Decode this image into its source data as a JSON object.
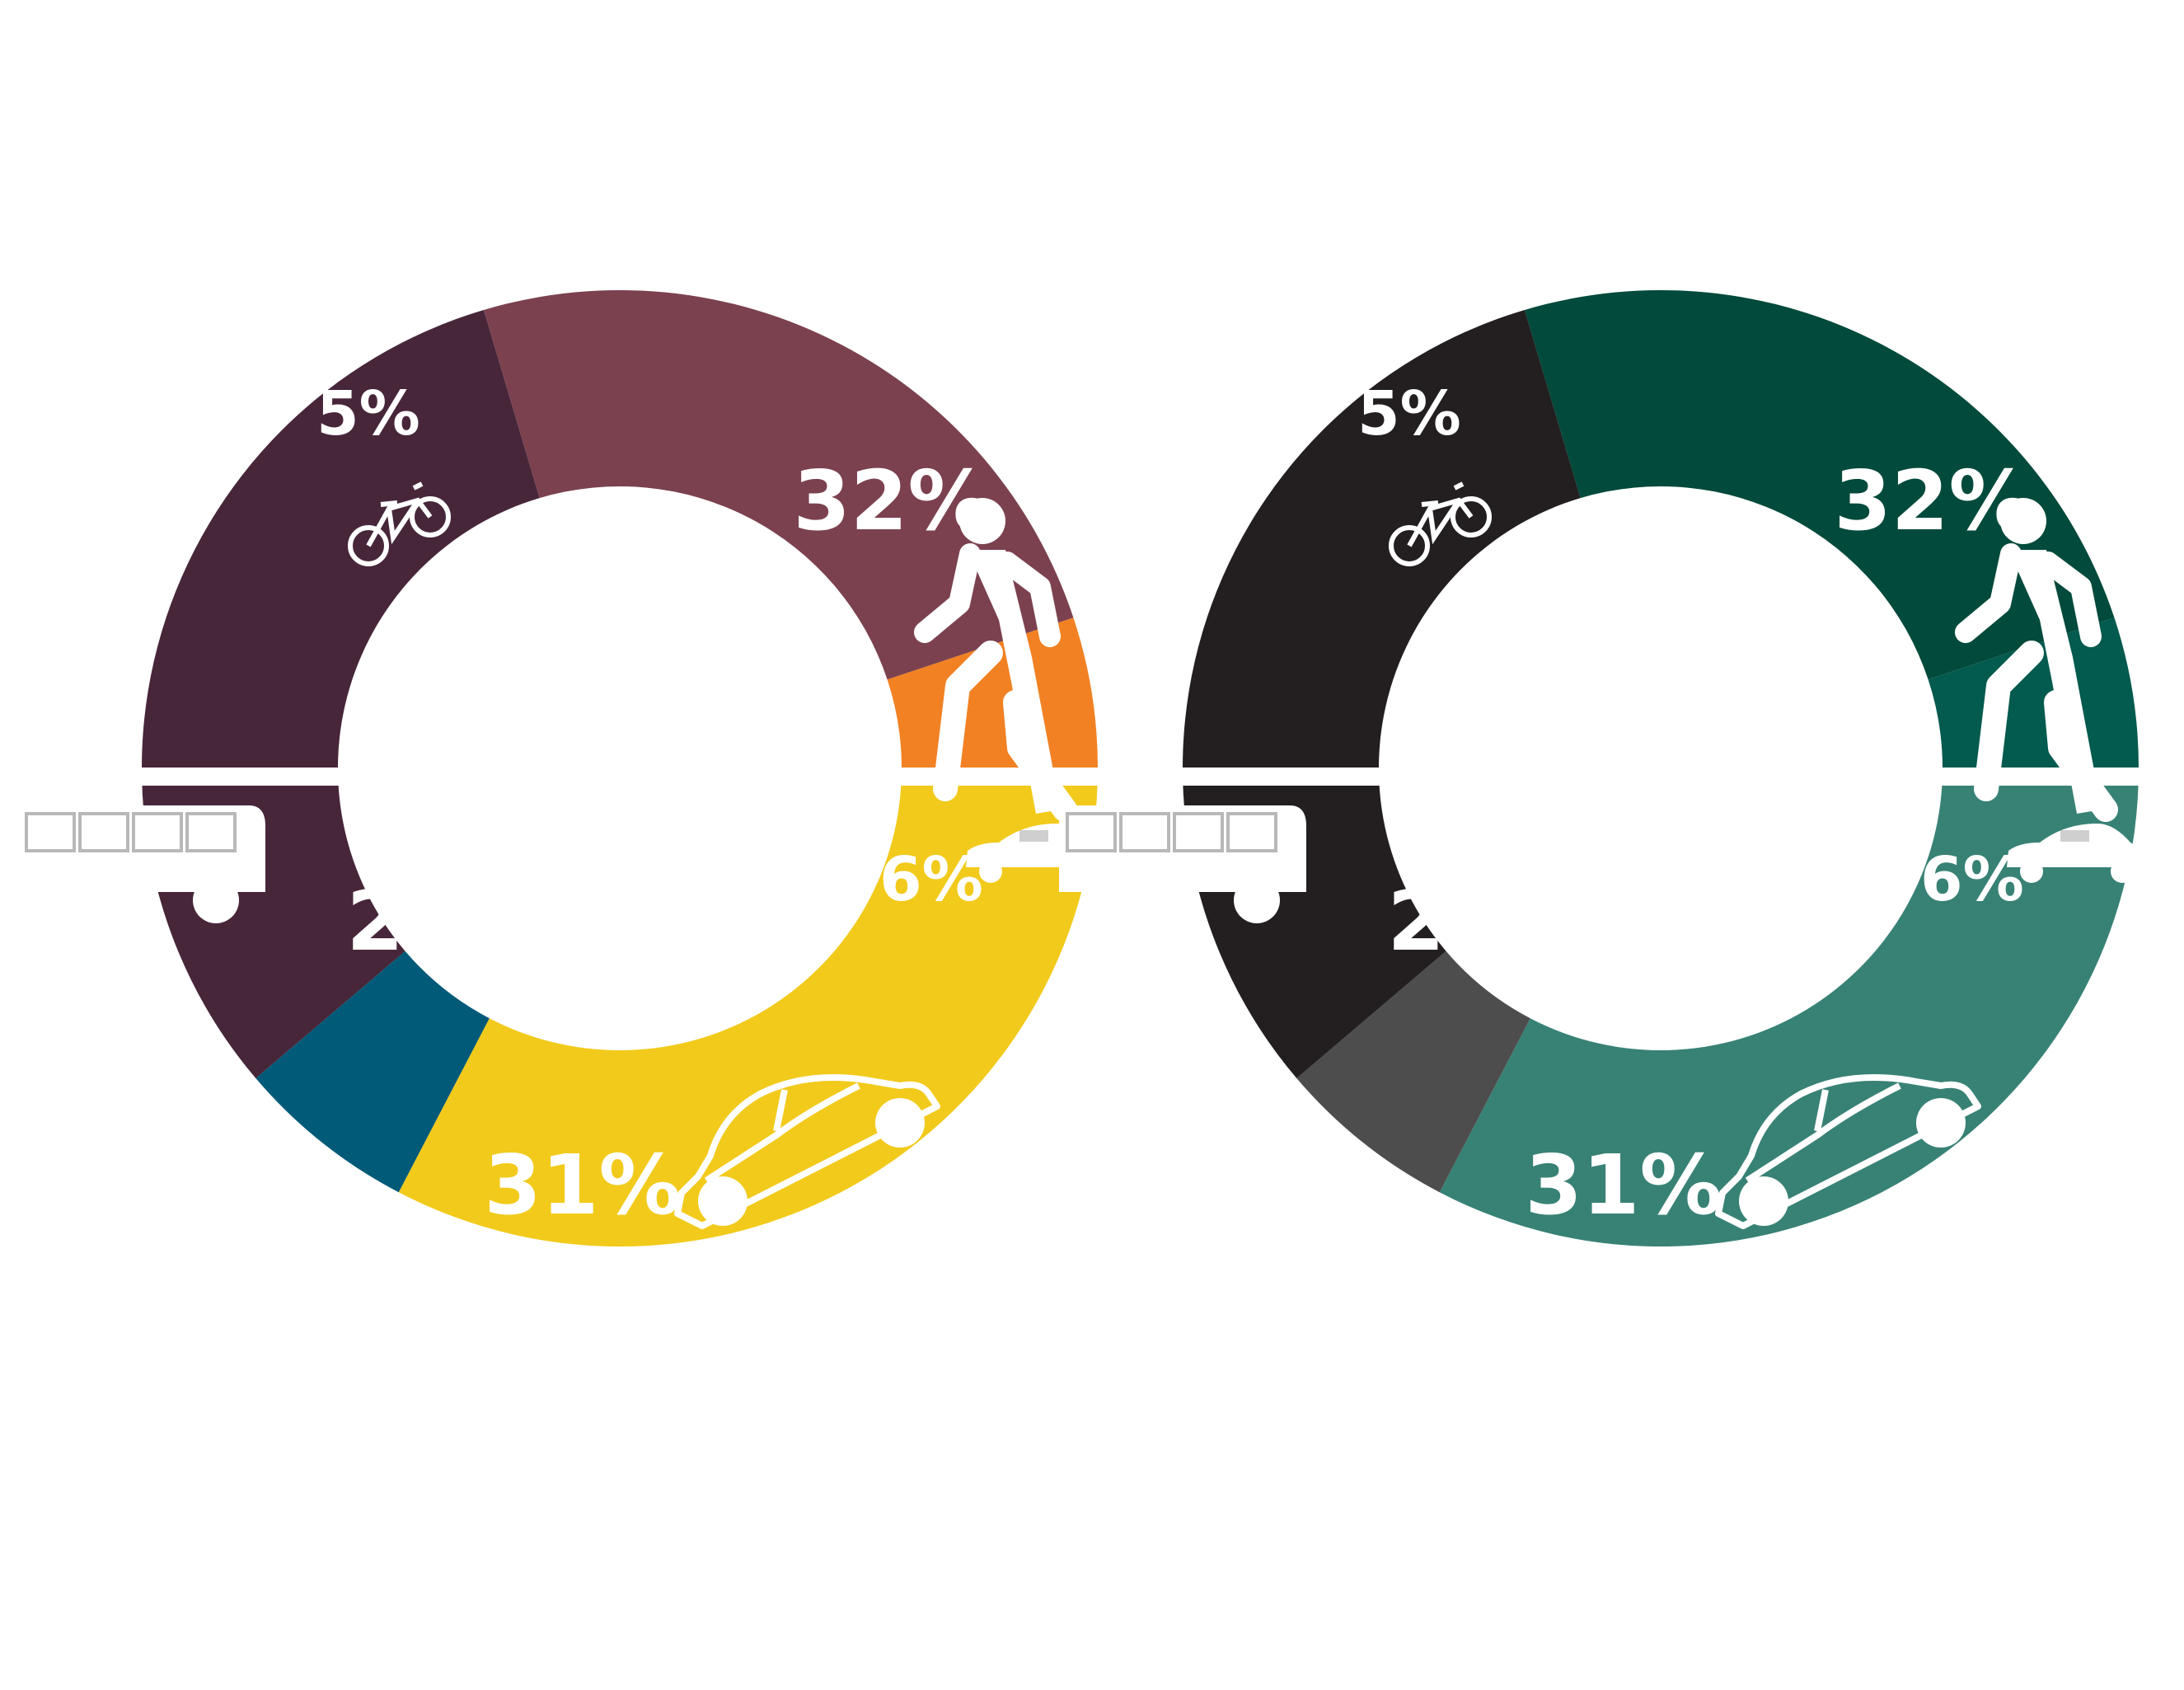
{
  "chart_data": [
    {
      "type": "pie",
      "categories": [
        "walk",
        "taxi",
        "car",
        "bus",
        "bicycle"
      ],
      "icons": [
        "walking-person-icon",
        "taxi-icon",
        "car-icon",
        "bus-icon",
        "bicycle-icon"
      ],
      "values": [
        32,
        6,
        31,
        24,
        5
      ],
      "labels": [
        "32%",
        "6%",
        "31%",
        "24%",
        "5%"
      ],
      "colors": [
        "#F2CA1B",
        "#005A78",
        "#47263A",
        "#7B414F",
        "#F18123"
      ]
    },
    {
      "type": "pie",
      "categories": [
        "walk",
        "taxi",
        "car",
        "bus",
        "bicycle"
      ],
      "icons": [
        "walking-person-icon",
        "taxi-icon",
        "car-icon",
        "bus-icon",
        "bicycle-icon"
      ],
      "values": [
        32,
        6,
        31,
        24,
        5
      ],
      "labels": [
        "32%",
        "6%",
        "31%",
        "24%",
        "5%"
      ],
      "colors": [
        "#388275",
        "#4D4D4D",
        "#231F20",
        "#024A3B",
        "#035A4E"
      ]
    }
  ]
}
